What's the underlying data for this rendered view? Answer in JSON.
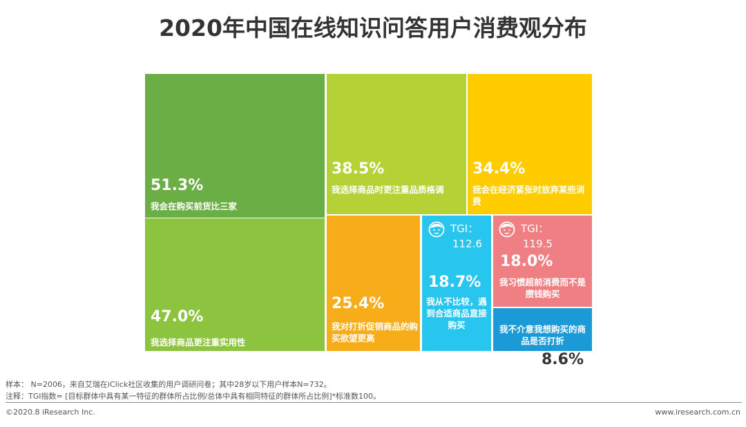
{
  "chart_data": {
    "type": "treemap",
    "title": "2020年中国在线知识问答用户消费观分布",
    "categories": [
      "我会在购买前货比三家",
      "我选择商品更注重实用性",
      "我选择商品时更注重品质格调",
      "我会在经济紧张时放弃某些消费",
      "我对打折促销商品的购买欲望更高",
      "我从不比较，遇到合适商品直接购买",
      "我习惯超前消费而不是攒钱购买",
      "我不介意我想购买的商品是否打折"
    ],
    "values": [
      51.3,
      47.0,
      38.5,
      34.4,
      25.4,
      18.7,
      18.0,
      8.6
    ],
    "value_labels": [
      "51.3%",
      "47.0%",
      "38.5%",
      "34.4%",
      "25.4%",
      "18.7%",
      "18.0%",
      "8.6%"
    ],
    "colors": [
      "#6aae45",
      "#8cc43f",
      "#b4d235",
      "#ffcc00",
      "#f7ad1a",
      "#28c5ee",
      "#f07f83",
      "#1b9ad7"
    ],
    "tgi_label": "TGI：",
    "tgi": [
      null,
      null,
      null,
      null,
      null,
      112.6,
      119.5,
      null
    ]
  },
  "footer": {
    "sample": "样本： N=2006，来自艾瑞在iClick社区收集的用户调研问卷；其中28岁以下用户样本N=732。",
    "note": "注释：TGI指数= [目标群体中具有某一特征的群体所占比例/总体中具有相同特征的群体所占比例]*标准数100。",
    "copyright": "©2020.8 iResearch Inc.",
    "website": "www.iresearch.com.cn"
  }
}
